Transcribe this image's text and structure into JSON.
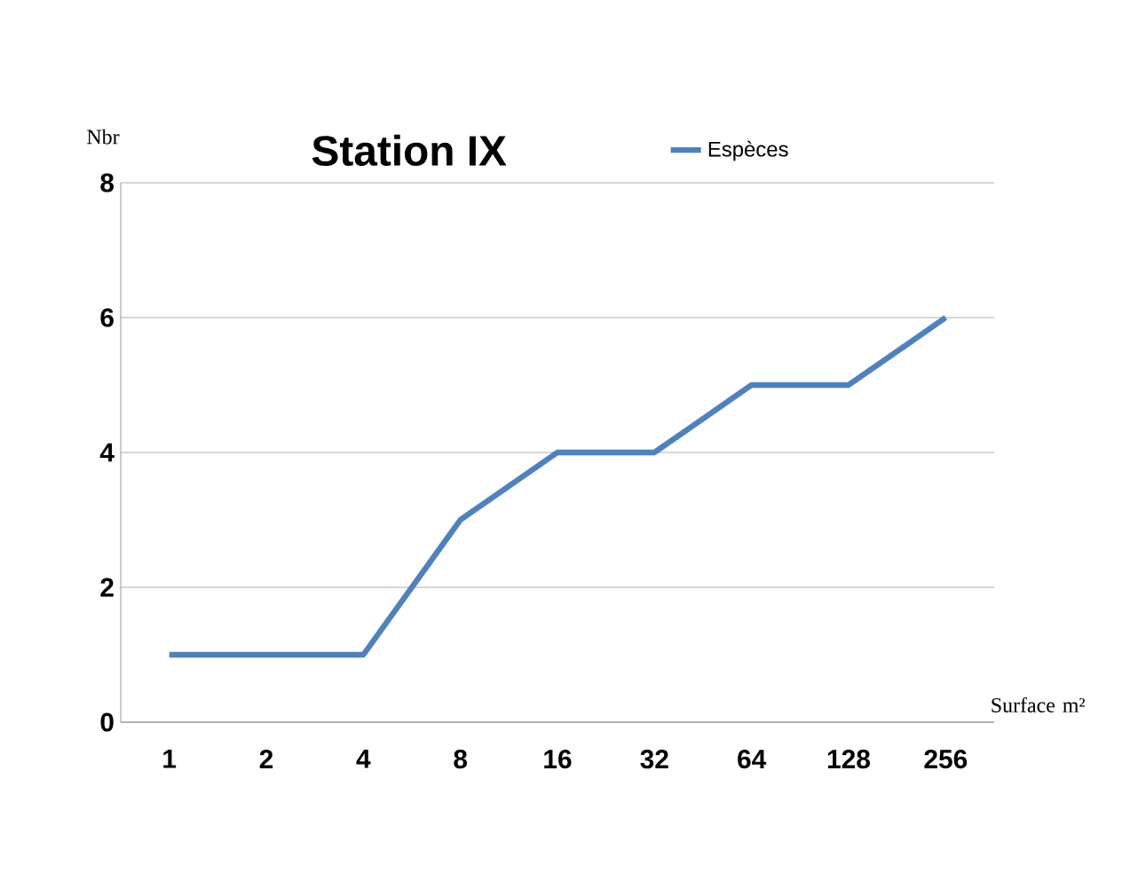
{
  "chart_data": {
    "type": "line",
    "title": "Station IX",
    "xlabel": "Surface m²",
    "ylabel": "Nbr",
    "categories": [
      "1",
      "2",
      "4",
      "8",
      "16",
      "32",
      "64",
      "128",
      "256"
    ],
    "series": [
      {
        "name": "Espèces",
        "color": "#4f81bd",
        "values": [
          1,
          1,
          1,
          3,
          4,
          4,
          5,
          5,
          6
        ]
      }
    ],
    "ylim": [
      0,
      8
    ],
    "yticks": [
      0,
      2,
      4,
      6,
      8
    ],
    "grid": "y",
    "legend": "top",
    "marker": "none",
    "line_style": "solid"
  }
}
